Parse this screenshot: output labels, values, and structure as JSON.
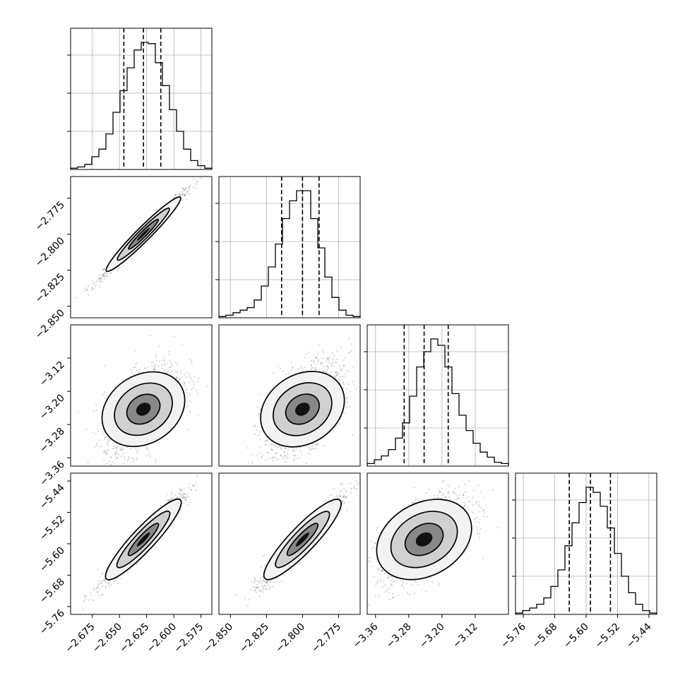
{
  "chart_data": {
    "type": "corner",
    "parameters": [
      {
        "range": [
          -2.695,
          -2.565
        ],
        "ticks": [
          -2.675,
          -2.65,
          -2.625,
          -2.6,
          -2.575
        ],
        "tick_labels": [
          "−2.675",
          "−2.650",
          "−2.625",
          "−2.600",
          "−2.575"
        ],
        "quantiles": [
          -2.646,
          -2.628,
          -2.612
        ],
        "hist": [
          0.01,
          0.02,
          0.04,
          0.1,
          0.16,
          0.28,
          0.45,
          0.62,
          0.8,
          0.94,
          1.0,
          0.99,
          0.84,
          0.66,
          0.47,
          0.3,
          0.16,
          0.07,
          0.03,
          0.01
        ]
      },
      {
        "range": [
          -2.858,
          -2.76
        ],
        "ticks": [
          -2.85,
          -2.825,
          -2.8,
          -2.775
        ],
        "tick_labels": [
          "−2.850",
          "−2.825",
          "−2.800",
          "−2.775"
        ],
        "quantiles": [
          -2.8145,
          -2.8,
          -2.7885
        ],
        "hist": [
          0.01,
          0.02,
          0.04,
          0.06,
          0.08,
          0.14,
          0.25,
          0.4,
          0.58,
          0.78,
          0.92,
          1.0,
          1.0,
          0.78,
          0.55,
          0.32,
          0.16,
          0.06,
          0.02,
          0.01
        ]
      },
      {
        "range": [
          -3.38,
          -3.04
        ],
        "ticks": [
          -3.36,
          -3.28,
          -3.2,
          -3.12
        ],
        "tick_labels": [
          "−3.36",
          "−3.28",
          "−3.20",
          "−3.12"
        ],
        "quantiles": [
          -3.291,
          -3.243,
          -3.185
        ],
        "hist": [
          0.02,
          0.05,
          0.08,
          0.13,
          0.22,
          0.34,
          0.55,
          0.78,
          0.9,
          1.0,
          0.95,
          0.78,
          0.57,
          0.4,
          0.28,
          0.18,
          0.11,
          0.07,
          0.03,
          0.02
        ]
      },
      {
        "range": [
          -5.78,
          -5.42
        ],
        "ticks": [
          -5.76,
          -5.68,
          -5.6,
          -5.52,
          -5.44
        ],
        "tick_labels": [
          "−5.76",
          "−5.68",
          "−5.60",
          "−5.52",
          "−5.44"
        ],
        "quantiles": [
          -5.643,
          -5.589,
          -5.538
        ],
        "hist": [
          0.01,
          0.03,
          0.05,
          0.08,
          0.13,
          0.22,
          0.35,
          0.54,
          0.72,
          0.88,
          1.0,
          0.96,
          0.85,
          0.68,
          0.48,
          0.3,
          0.17,
          0.08,
          0.03,
          0.01
        ]
      }
    ],
    "hist_y_gridlines": [
      0.3,
      0.6,
      0.9
    ],
    "grid": true,
    "series": [
      {
        "values": []
      }
    ]
  }
}
